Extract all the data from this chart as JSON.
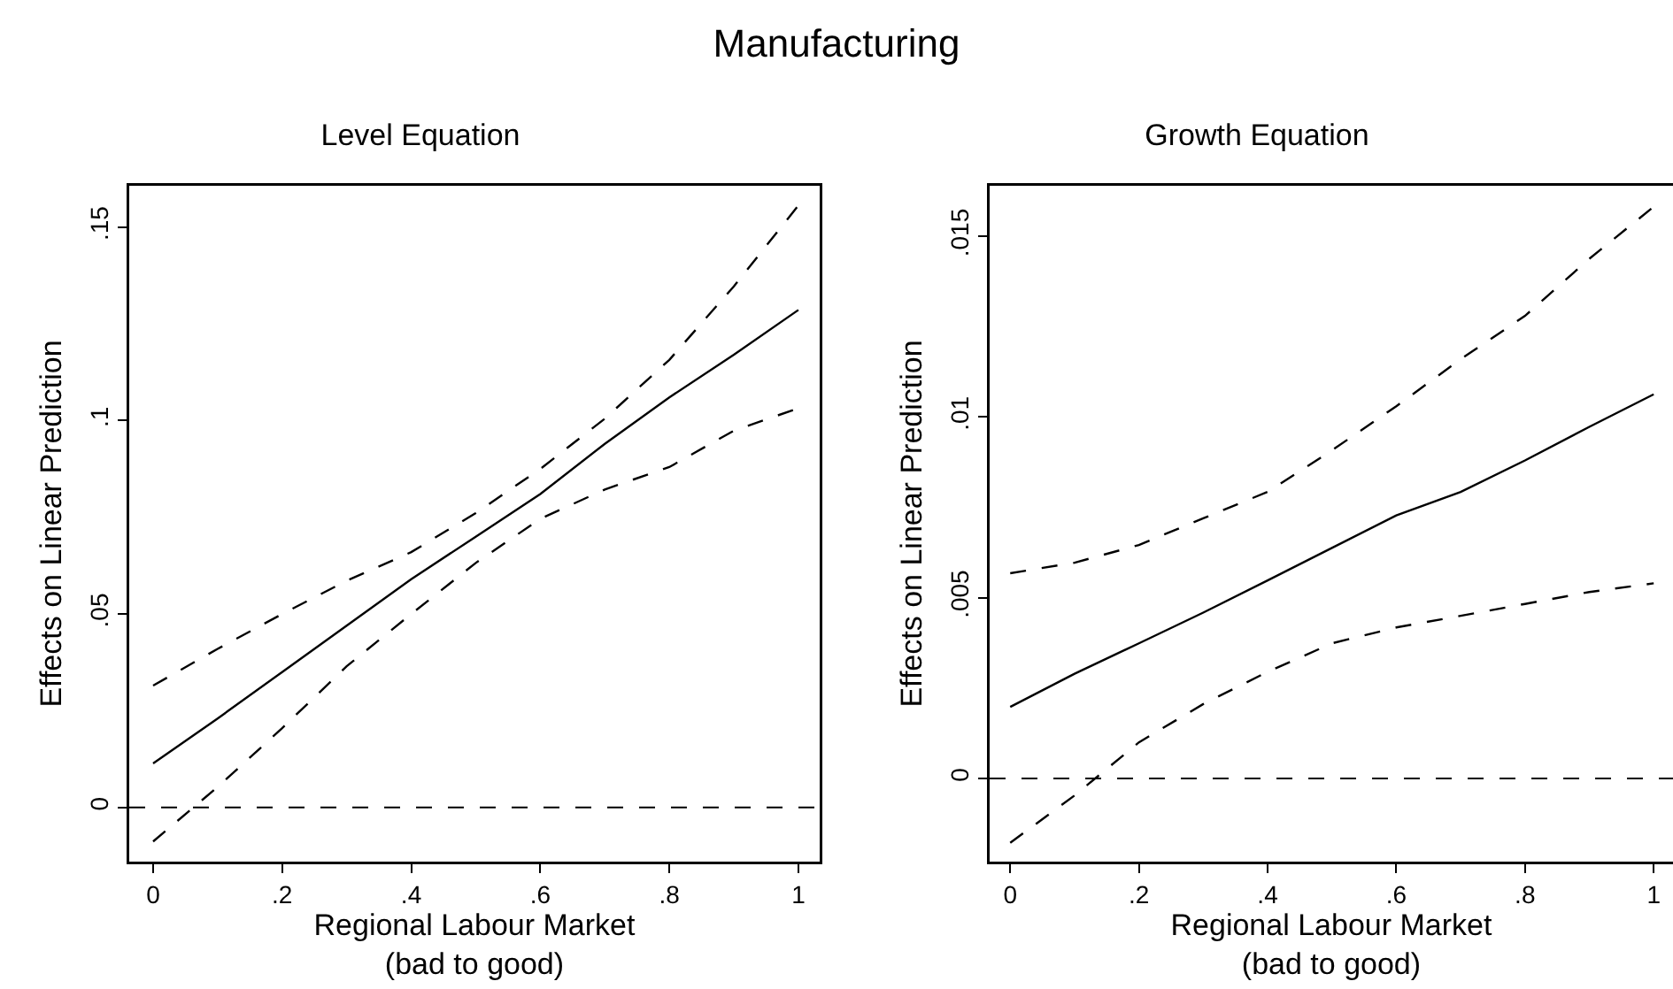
{
  "chart_data": [
    {
      "type": "line",
      "title": "Manufacturing",
      "subtitle": "Level Equation",
      "xlabel": "Regional Labour Market\n(bad to good)",
      "ylabel": "Effects on Linear Prediction",
      "x": [
        0,
        0.1,
        0.2,
        0.3,
        0.4,
        0.5,
        0.6,
        0.7,
        0.8,
        0.9,
        1
      ],
      "series": [
        {
          "color": "#000000",
          "line_style": "solid",
          "values": [
            0.0114,
            0.023,
            0.035,
            0.047,
            0.059,
            0.07,
            0.081,
            0.094,
            0.106,
            0.117,
            0.1286
          ]
        },
        {
          "color": "#000000",
          "line_style": "dashed",
          "values": [
            0.0315,
            0.041,
            0.05,
            0.0586,
            0.066,
            0.0761,
            0.0875,
            0.1005,
            0.1157,
            0.1347,
            0.1556
          ]
        },
        {
          "color": "#000000",
          "line_style": "dashed",
          "values": [
            -0.0088,
            0.0053,
            0.0205,
            0.0365,
            0.05,
            0.0632,
            0.0746,
            0.0822,
            0.088,
            0.0974,
            0.1032
          ]
        }
      ],
      "xlim": [
        -0.037,
        1.033
      ],
      "ylim": [
        -0.014,
        0.1607
      ],
      "xticks": [
        {
          "value": 0,
          "label": "0"
        },
        {
          "value": 0.2,
          "label": ".2"
        },
        {
          "value": 0.4,
          "label": ".4"
        },
        {
          "value": 0.6,
          "label": ".6"
        },
        {
          "value": 0.8,
          "label": ".8"
        },
        {
          "value": 1,
          "label": "1"
        }
      ],
      "yticks": [
        {
          "value": 0,
          "label": "0"
        },
        {
          "value": 0.05,
          "label": ".05"
        },
        {
          "value": 0.1,
          "label": ".1"
        },
        {
          "value": 0.15,
          "label": ".15"
        }
      ],
      "ref_lines": [
        {
          "axis": "y",
          "value": 0,
          "color": "#000000",
          "line_style": "dashed"
        }
      ],
      "grid": false
    },
    {
      "type": "line",
      "subtitle": "Growth Equation",
      "xlabel": "Regional Labour Market\n(bad to good)",
      "ylabel": "Effects on Linear Prediction",
      "x": [
        0,
        0.1,
        0.2,
        0.3,
        0.4,
        0.5,
        0.6,
        0.7,
        0.8,
        0.9,
        1
      ],
      "series": [
        {
          "color": "#000000",
          "line_style": "solid",
          "values": [
            0.00198,
            0.0029,
            0.00374,
            0.00459,
            0.00548,
            0.00638,
            0.00728,
            0.00793,
            0.0088,
            0.00973,
            0.01063
          ]
        },
        {
          "color": "#000000",
          "line_style": "dashed",
          "values": [
            0.00568,
            0.00597,
            0.00646,
            0.0072,
            0.00793,
            0.00908,
            0.0103,
            0.0116,
            0.0128,
            0.01438,
            0.01582
          ]
        },
        {
          "color": "#000000",
          "line_style": "dashed",
          "values": [
            -0.00178,
            -0.00047,
            0.001,
            0.00206,
            0.00295,
            0.00374,
            0.00418,
            0.0045,
            0.00483,
            0.00516,
            0.0054
          ]
        }
      ],
      "xlim": [
        -0.032,
        1.03
      ],
      "ylim": [
        -0.0023,
        0.0164
      ],
      "xticks": [
        {
          "value": 0,
          "label": "0"
        },
        {
          "value": 0.2,
          "label": ".2"
        },
        {
          "value": 0.4,
          "label": ".4"
        },
        {
          "value": 0.6,
          "label": ".6"
        },
        {
          "value": 0.8,
          "label": ".8"
        },
        {
          "value": 1,
          "label": "1"
        }
      ],
      "yticks": [
        {
          "value": 0,
          "label": "0"
        },
        {
          "value": 0.005,
          "label": ".005"
        },
        {
          "value": 0.01,
          "label": ".01"
        },
        {
          "value": 0.015,
          "label": ".015"
        }
      ],
      "ref_lines": [
        {
          "axis": "y",
          "value": 0,
          "color": "#000000",
          "line_style": "dashed"
        }
      ],
      "grid": false
    }
  ]
}
